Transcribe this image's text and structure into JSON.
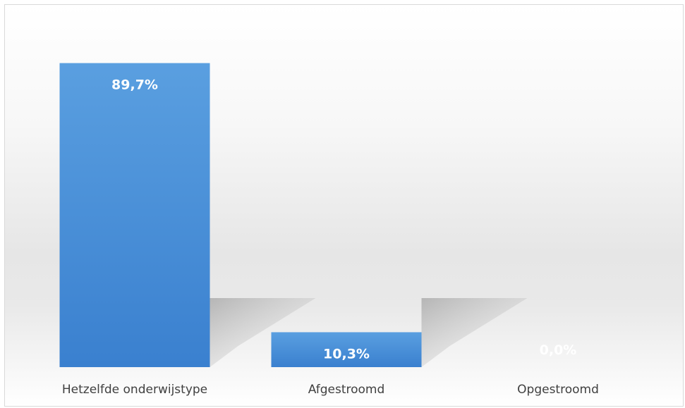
{
  "chart_data": {
    "type": "bar",
    "categories": [
      "Hetzelfde onderwijstype",
      "Afgestroomd",
      "Opgestroomd"
    ],
    "values": [
      89.7,
      10.3,
      0.0
    ],
    "data_labels": [
      "89,7%",
      "10,3%",
      "0,0%"
    ],
    "unit": "%",
    "ylim": [
      0,
      100
    ],
    "grid": false,
    "legend": "none",
    "bar_color": "#4a8fd6",
    "label_color": "#ffffff"
  }
}
